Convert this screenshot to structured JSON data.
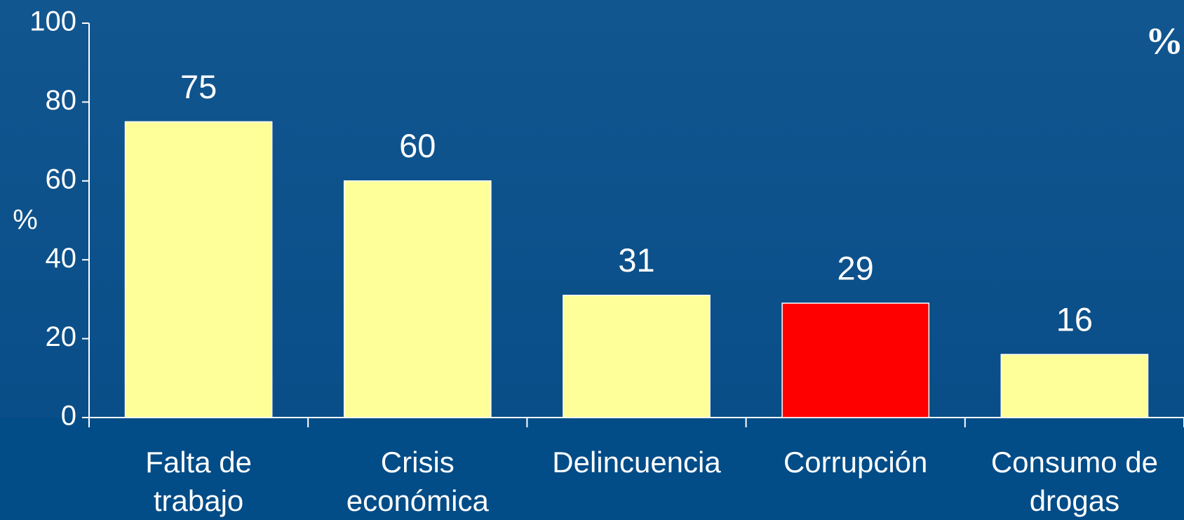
{
  "chart_data": {
    "type": "bar",
    "title": "%",
    "y_label": "%",
    "categories": [
      [
        "Falta de",
        "trabajo"
      ],
      [
        "Crisis",
        "económica"
      ],
      [
        "Delincuencia"
      ],
      [
        "Corrupción"
      ],
      [
        "Consumo de",
        "drogas"
      ]
    ],
    "values": [
      75,
      60,
      31,
      29,
      16
    ],
    "colors": [
      "#ffff99",
      "#ffff99",
      "#ffff99",
      "#ff0000",
      "#ffff99"
    ],
    "ylim": [
      0,
      100
    ],
    "yticks": [
      0,
      20,
      40,
      60,
      80,
      100
    ],
    "grid": false
  }
}
